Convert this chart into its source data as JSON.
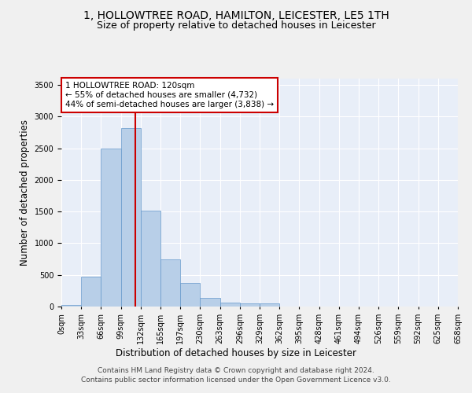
{
  "title_line1": "1, HOLLOWTREE ROAD, HAMILTON, LEICESTER, LE5 1TH",
  "title_line2": "Size of property relative to detached houses in Leicester",
  "xlabel": "Distribution of detached houses by size in Leicester",
  "ylabel": "Number of detached properties",
  "bar_values": [
    25,
    475,
    2500,
    2820,
    1510,
    745,
    375,
    140,
    65,
    55,
    55,
    0,
    0,
    0,
    0,
    0,
    0,
    0,
    0,
    0
  ],
  "bin_labels": [
    "0sqm",
    "33sqm",
    "66sqm",
    "99sqm",
    "132sqm",
    "165sqm",
    "197sqm",
    "230sqm",
    "263sqm",
    "296sqm",
    "329sqm",
    "362sqm",
    "395sqm",
    "428sqm",
    "461sqm",
    "494sqm",
    "526sqm",
    "559sqm",
    "592sqm",
    "625sqm",
    "658sqm"
  ],
  "bar_color": "#b8cfe8",
  "bar_edgecolor": "#6699cc",
  "vline_pos": 3.72,
  "ylim": [
    0,
    3600
  ],
  "yticks": [
    0,
    500,
    1000,
    1500,
    2000,
    2500,
    3000,
    3500
  ],
  "annotation_text": "1 HOLLOWTREE ROAD: 120sqm\n← 55% of detached houses are smaller (4,732)\n44% of semi-detached houses are larger (3,838) →",
  "annotation_box_color": "#ffffff",
  "annotation_box_edgecolor": "#cc0000",
  "vline_color": "#cc0000",
  "footer_line1": "Contains HM Land Registry data © Crown copyright and database right 2024.",
  "footer_line2": "Contains public sector information licensed under the Open Government Licence v3.0.",
  "background_color": "#e8eef8",
  "fig_background": "#f0f0f0",
  "grid_color": "#ffffff",
  "title_fontsize": 10,
  "subtitle_fontsize": 9,
  "axis_label_fontsize": 8.5,
  "tick_fontsize": 7,
  "footer_fontsize": 6.5,
  "annotation_fontsize": 7.5
}
